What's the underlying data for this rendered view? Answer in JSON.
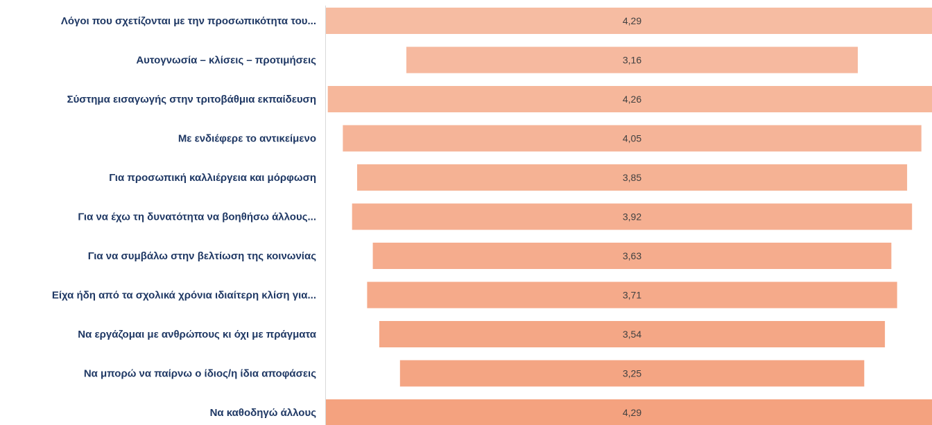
{
  "chart_data": {
    "type": "bar",
    "orientation": "horizontal",
    "layout": "funnel-centered",
    "categories": [
      "Λόγοι που σχετίζονται με την προσωπικότητα του...",
      "Αυτογνωσία – κλίσεις – προτιμήσεις",
      "Σύστημα εισαγωγής στην τριτοβάθμια εκπαίδευση",
      "Με ενδιέφερε το αντικείμενο",
      "Για προσωπική καλλιέργεια και μόρφωση",
      "Για να έχω τη δυνατότητα να βοηθήσω άλλους...",
      "Για να συμβάλω στην βελτίωση της κοινωνίας",
      "Είχα ήδη από τα σχολικά χρόνια ιδιαίτερη κλίση για...",
      "Να εργάζομαι με ανθρώπους κι όχι με πράγματα",
      "Να μπορώ να παίρνω ο ίδιος/η ίδια αποφάσεις",
      "Να καθοδηγώ άλλους"
    ],
    "values": [
      4.29,
      3.16,
      4.26,
      4.05,
      3.85,
      3.92,
      3.63,
      3.71,
      3.54,
      3.25,
      4.29
    ],
    "value_labels": [
      "4,29",
      "3,16",
      "4,26",
      "4,05",
      "3,85",
      "3,92",
      "3,63",
      "3,71",
      "3,54",
      "3,25",
      "4,29"
    ],
    "title": "",
    "xlabel": "",
    "ylabel": "",
    "legend": "none",
    "grid": false,
    "colors": {
      "bar_light": "#f6bca2",
      "bar_dark": "#f4a27f",
      "label_text": "#1f3864",
      "value_text": "#404040",
      "axis_line": "#d9d9d9"
    }
  }
}
